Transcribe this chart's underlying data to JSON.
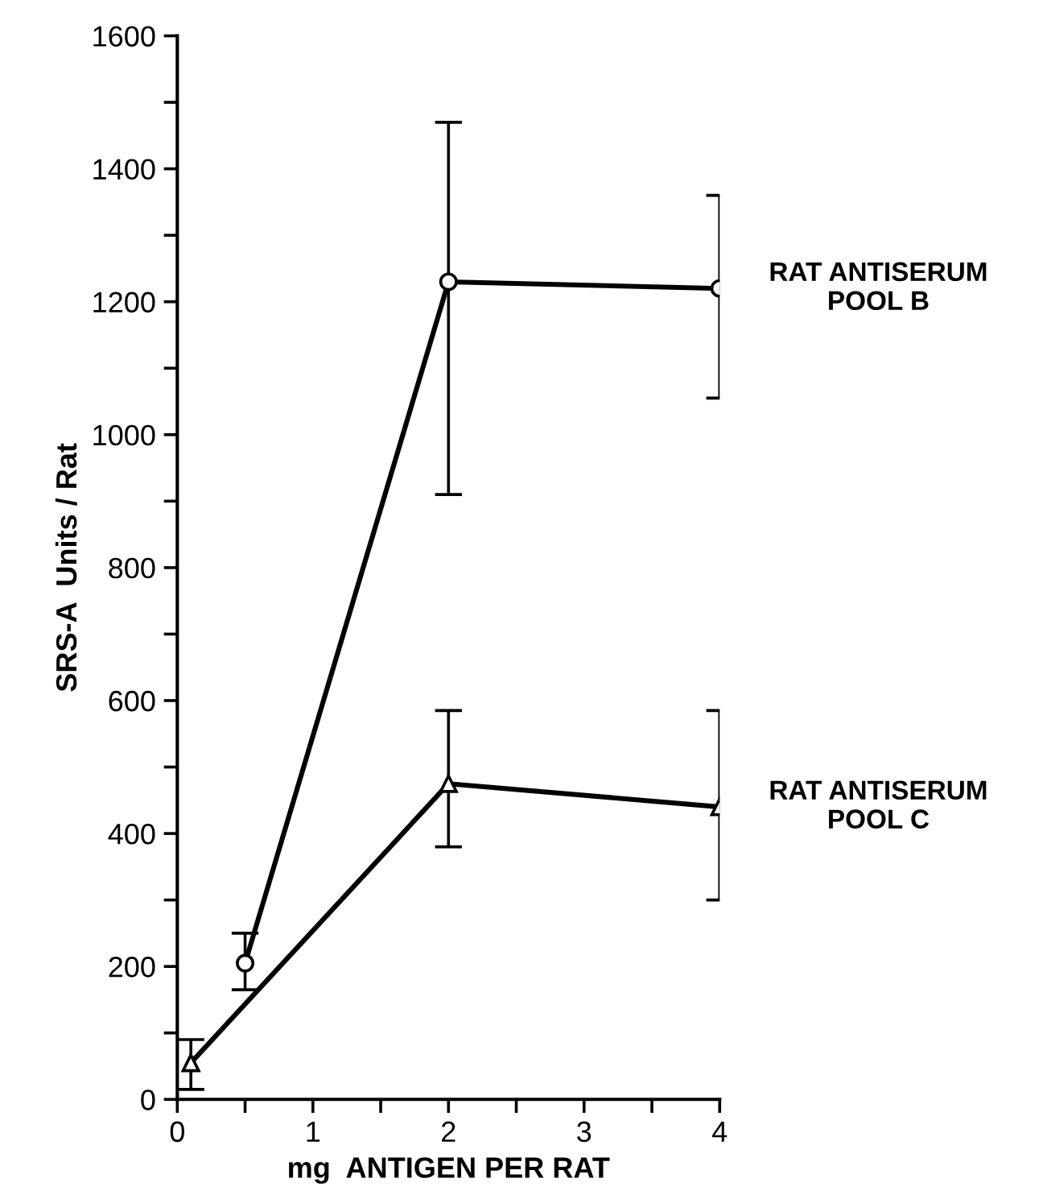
{
  "chart_data": {
    "type": "line",
    "xlabel": "mg  ANTIGEN PER RAT",
    "ylabel": "SRS-A  Units / Rat",
    "xlim": [
      0,
      4
    ],
    "ylim": [
      0,
      1600
    ],
    "xticks": [
      0,
      {
        "value": 0.5,
        "label": null
      },
      1,
      {
        "value": 1.5,
        "label": null
      },
      2,
      {
        "value": 2.5,
        "label": null
      },
      3,
      {
        "value": 3.5,
        "label": null
      },
      4
    ],
    "yticks": [
      0,
      {
        "value": 100,
        "label": null
      },
      200,
      {
        "value": 300,
        "label": null
      },
      400,
      {
        "value": 500,
        "label": null
      },
      600,
      {
        "value": 700,
        "label": null
      },
      800,
      {
        "value": 900,
        "label": null
      },
      1000,
      {
        "value": 1100,
        "label": null
      },
      1200,
      {
        "value": 1300,
        "label": null
      },
      1400,
      {
        "value": 1500,
        "label": null
      },
      1600
    ],
    "grid": false,
    "legend": false,
    "line_style": "solid",
    "series": [
      {
        "name": "RAT ANTISERUM\nPOOL B",
        "color": "#000000",
        "marker": "circle",
        "x": [
          0.5,
          2,
          4
        ],
        "values": [
          205,
          1230,
          1220
        ],
        "errors": [
          [
            165,
            250
          ],
          [
            910,
            1470
          ],
          [
            1055,
            1360
          ]
        ]
      },
      {
        "name": "RAT ANTISERUM\nPOOL C",
        "color": "#000000",
        "marker": "triangle",
        "x": [
          0.1,
          2,
          4
        ],
        "values": [
          55,
          475,
          440
        ],
        "errors": [
          [
            15,
            90
          ],
          [
            380,
            585
          ],
          [
            300,
            585
          ]
        ]
      }
    ]
  }
}
